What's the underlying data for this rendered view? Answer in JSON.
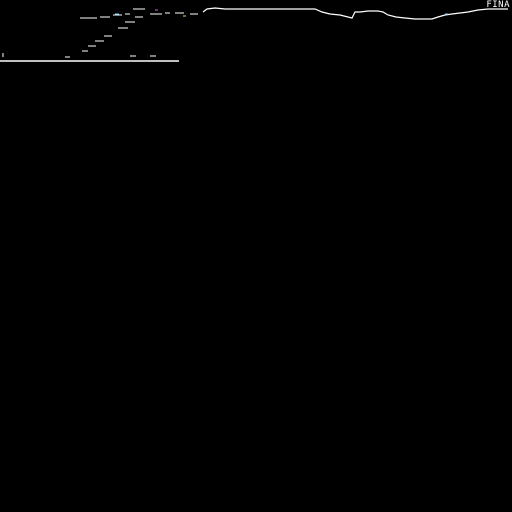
{
  "screen": {
    "background_color": "#000000",
    "stroke_color": "#ffffff",
    "accent_colors": [
      "#66ccff",
      "#cc66cc",
      "#ffcc66"
    ]
  },
  "corner_label": {
    "text": "FINA"
  }
}
